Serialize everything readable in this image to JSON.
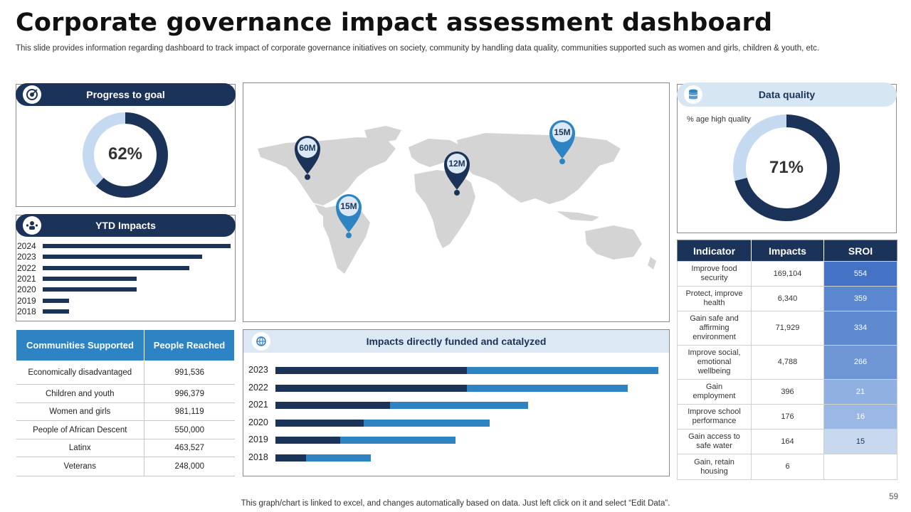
{
  "header": {
    "title": "Corporate governance impact assessment dashboard",
    "subtitle": "This slide provides information regarding dashboard to track impact of corporate governance initiatives on society, community by handling data quality, communities supported such as women and girls, children & youth, etc."
  },
  "progress": {
    "title": "Progress to goal",
    "label": "62%",
    "value": 62
  },
  "ytd": {
    "title": "YTD Impacts",
    "rows": [
      {
        "year": "2024",
        "value": 100
      },
      {
        "year": "2023",
        "value": 85
      },
      {
        "year": "2022",
        "value": 78
      },
      {
        "year": "2021",
        "value": 50
      },
      {
        "year": "2020",
        "value": 50
      },
      {
        "year": "2019",
        "value": 14
      },
      {
        "year": "2018",
        "value": 14
      }
    ]
  },
  "communities": {
    "headers": [
      "Communities Supported",
      "People Reached"
    ],
    "rows": [
      [
        "Economically disadvantaged",
        "991,536"
      ],
      [
        "Children and youth",
        "996,379"
      ],
      [
        "Women and girls",
        "981,119"
      ],
      [
        "People of African Descent",
        "550,000"
      ],
      [
        "Latinx",
        "463,527"
      ],
      [
        "Veterans",
        "248,000"
      ]
    ]
  },
  "map": {
    "pins": [
      {
        "label": "60M",
        "style": "dark"
      },
      {
        "label": "15M",
        "style": "light"
      },
      {
        "label": "12M",
        "style": "dark"
      },
      {
        "label": "15M",
        "style": "light"
      }
    ]
  },
  "funded": {
    "title": "Impacts directly funded and catalyzed",
    "rows": [
      {
        "year": "2023",
        "dark": 50,
        "light": 50
      },
      {
        "year": "2022",
        "dark": 50,
        "light": 42
      },
      {
        "year": "2021",
        "dark": 30,
        "light": 36
      },
      {
        "year": "2020",
        "dark": 23,
        "light": 33
      },
      {
        "year": "2019",
        "dark": 17,
        "light": 30
      },
      {
        "year": "2018",
        "dark": 8,
        "light": 17
      }
    ]
  },
  "data_quality": {
    "title": "Data quality",
    "caption": "% age high quality",
    "label": "71%",
    "value": 71
  },
  "indicators": {
    "headers": [
      "Indicator",
      "Impacts",
      "SROI"
    ],
    "rows": [
      {
        "indicator": "Improve food security",
        "impacts": "169,104",
        "sroi": "554",
        "color": "#4472c4"
      },
      {
        "indicator": "Protect, improve health",
        "impacts": "6,340",
        "sroi": "359",
        "color": "#5a87cf"
      },
      {
        "indicator": "Gain safe and affirming environment",
        "impacts": "71,929",
        "sroi": "334",
        "color": "#5f8ad0"
      },
      {
        "indicator": "Improve social, emotional wellbeing",
        "impacts": "4,788",
        "sroi": "266",
        "color": "#6e96d5"
      },
      {
        "indicator": "Gain employment",
        "impacts": "396",
        "sroi": "21",
        "color": "#8fb0e0"
      },
      {
        "indicator": "Improve school performance",
        "impacts": "176",
        "sroi": "16",
        "color": "#9ab8e3"
      },
      {
        "indicator": "Gain access to safe water",
        "impacts": "164",
        "sroi": "15",
        "color": "#c7d8ef"
      },
      {
        "indicator": "Gain, retain housing",
        "impacts": "6",
        "sroi": "",
        "color": "#ffffff"
      }
    ]
  },
  "colors": {
    "navy": "#1b3358",
    "blue": "#2e83c3",
    "light_blue": "#c5d9f0",
    "map_gray": "#d4d4d4"
  },
  "footer": {
    "note": "This graph/chart is linked to excel,  and changes automatically based on data. Just left click on it and select “Edit Data”.",
    "page": "59"
  }
}
